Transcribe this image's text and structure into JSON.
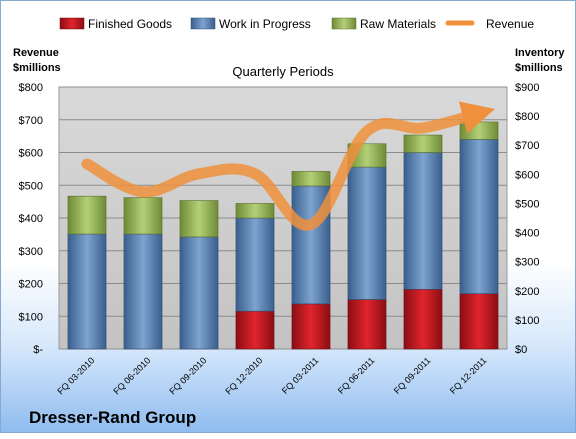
{
  "chart_data": {
    "type": "bar",
    "subtitle": "Quarterly Periods",
    "footer_title": "Dresser-Rand Group",
    "left_axis_title": [
      "Revenue",
      "$millions"
    ],
    "right_axis_title": [
      "Inventory",
      "$millions"
    ],
    "categories": [
      "FQ 03-2010",
      "FQ 06-2010",
      "FQ 09-2010",
      "FQ 12-2010",
      "FQ 03-2011",
      "FQ 06-2011",
      "FQ 09-2011",
      "FQ 12-2011"
    ],
    "series": [
      {
        "name": "Finished Goods",
        "color": "#c0141e",
        "axis": "right",
        "values": [
          0,
          0,
          0,
          130,
          155,
          170,
          205,
          190
        ]
      },
      {
        "name": "Work in Progress",
        "color": "#4f81bd",
        "axis": "right",
        "values": [
          395,
          395,
          385,
          320,
          405,
          455,
          470,
          530
        ]
      },
      {
        "name": "Raw Materials",
        "color": "#9bbb59",
        "axis": "right",
        "values": [
          130,
          125,
          125,
          50,
          50,
          80,
          60,
          60
        ]
      },
      {
        "name": "Revenue",
        "color": "#f79646",
        "axis": "left",
        "type": "line",
        "values": [
          565,
          480,
          535,
          535,
          380,
          665,
          675,
          720
        ]
      }
    ],
    "left_axis": {
      "min": 0,
      "max": 800,
      "ticks": [
        "$-",
        "$100",
        "$200",
        "$300",
        "$400",
        "$500",
        "$600",
        "$700",
        "$800"
      ]
    },
    "right_axis": {
      "min": 0,
      "max": 900,
      "ticks": [
        "$0",
        "$100",
        "$200",
        "$300",
        "$400",
        "$500",
        "$600",
        "$700",
        "$800",
        "$900"
      ]
    },
    "grid": true,
    "legend_position": "top"
  }
}
